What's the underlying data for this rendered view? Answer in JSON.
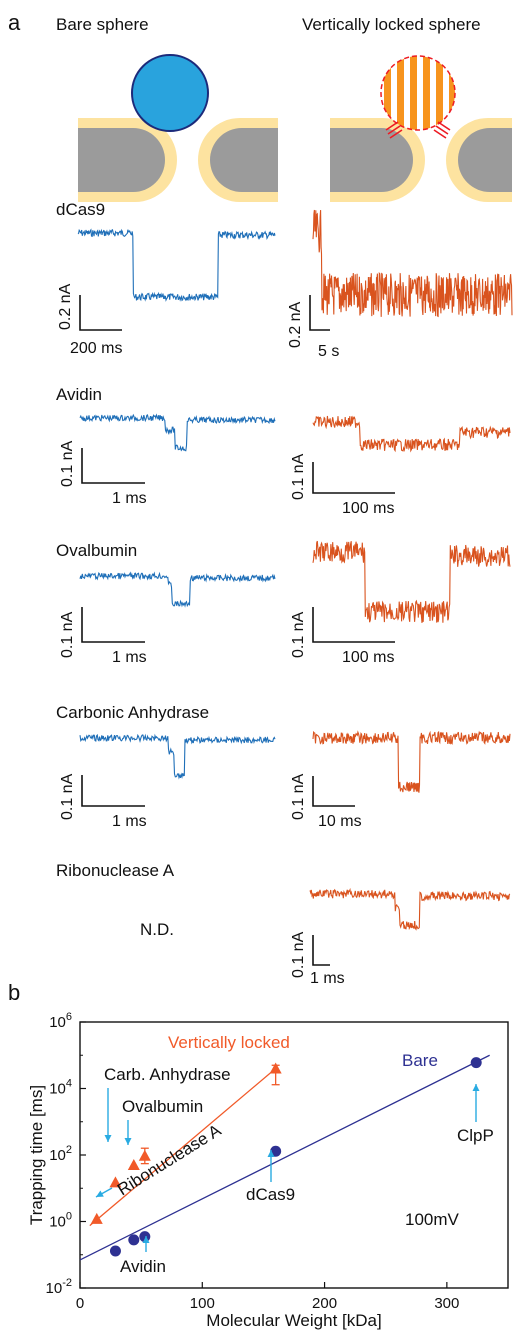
{
  "panels": {
    "a": "a",
    "b": "b"
  },
  "schematic": {
    "left_title": "Bare sphere",
    "right_title": "Vertically locked sphere",
    "colors": {
      "bare": "#29a3dd",
      "locked": "#f7941d",
      "membrane": "#fde3a0",
      "pore": "#9b9b9b",
      "link": "#ed1c24"
    }
  },
  "trace_colors": {
    "bare": "#1f6fb8",
    "locked": "#d9531e"
  },
  "traces": [
    {
      "name": "dCas9",
      "left_scale": {
        "y": "0.2 nA",
        "x": "200 ms"
      },
      "right_scale": {
        "y": "0.2 nA",
        "x": "5 s"
      }
    },
    {
      "name": "Avidin",
      "left_scale": {
        "y": "0.1 nA",
        "x": "1 ms"
      },
      "right_scale": {
        "y": "0.1 nA",
        "x": "100 ms"
      }
    },
    {
      "name": "Ovalbumin",
      "left_scale": {
        "y": "0.1 nA",
        "x": "1 ms"
      },
      "right_scale": {
        "y": "0.1 nA",
        "x": "100 ms"
      }
    },
    {
      "name": "Carbonic Anhydrase",
      "left_scale": {
        "y": "0.1 nA",
        "x": "1 ms"
      },
      "right_scale": {
        "y": "0.1 nA",
        "x": "10 ms"
      }
    },
    {
      "name": "Ribonuclease A",
      "left_note": "N.D.",
      "right_scale": {
        "y": "0.1 nA",
        "x": "1 ms"
      }
    }
  ],
  "chart_data": {
    "type": "scatter",
    "xlabel": "Molecular Weight [kDa]",
    "ylabel": "Trapping time [ms]",
    "xlim": [
      0,
      350
    ],
    "ylim": [
      0.01,
      1000000
    ],
    "yscale": "log",
    "xticks": [
      "0",
      "100",
      "200",
      "300"
    ],
    "yticks": [
      {
        "base": "10",
        "exp": "-2"
      },
      {
        "base": "10",
        "exp": "0"
      },
      {
        "base": "10",
        "exp": "2"
      },
      {
        "base": "10",
        "exp": "4"
      },
      {
        "base": "10",
        "exp": "6"
      }
    ],
    "condition": "100mV",
    "series": [
      {
        "name": "Vertically locked",
        "color": "#f15a29",
        "marker": "triangle",
        "points": [
          {
            "x": 13.7,
            "y": 1.2,
            "label": "Ribonuclease A"
          },
          {
            "x": 29,
            "y": 15
          },
          {
            "x": 44,
            "y": 50,
            "label": "Ovalbumin"
          },
          {
            "x": 53,
            "y": 95,
            "err": [
              55,
              160
            ]
          },
          {
            "x": 160,
            "y": 40000,
            "err": [
              13000,
              50000
            ]
          }
        ],
        "fit": [
          [
            8,
            0.75
          ],
          [
            160,
            40000
          ]
        ]
      },
      {
        "name": "Bare",
        "color": "#2e3192",
        "marker": "circle",
        "points": [
          {
            "x": 29,
            "y": 0.13
          },
          {
            "x": 44,
            "y": 0.28
          },
          {
            "x": 53,
            "y": 0.35,
            "label": "Avidin"
          },
          {
            "x": 160,
            "y": 130,
            "label": "dCas9"
          },
          {
            "x": 324,
            "y": 60000,
            "label": "ClpP"
          }
        ],
        "fit": [
          [
            0,
            0.07
          ],
          [
            335,
            100000
          ]
        ]
      }
    ],
    "annotations": {
      "carb": "Carb. Anhydrase",
      "ova": "Ovalbumin",
      "ribo": "Ribonuclease A",
      "avidin": "Avidin",
      "dcas9": "dCas9",
      "clpp": "ClpP"
    },
    "arrow_color": "#29abe2"
  }
}
